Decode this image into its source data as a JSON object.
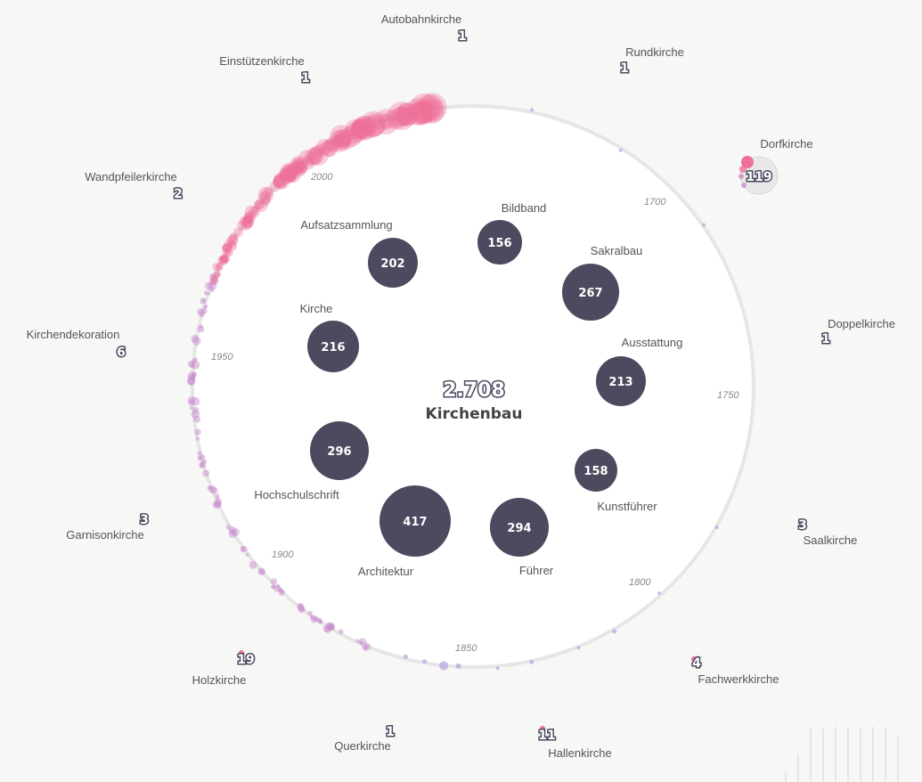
{
  "center": {
    "total": "2.708",
    "label": "Kirchenbau"
  },
  "inner_topics": [
    {
      "label": "Bildband",
      "value": "156"
    },
    {
      "label": "Aufsatzsammlung",
      "value": "202"
    },
    {
      "label": "Sakralbau",
      "value": "267"
    },
    {
      "label": "Kirche",
      "value": "216"
    },
    {
      "label": "Ausstattung",
      "value": "213"
    },
    {
      "label": "Hochschulschrift",
      "value": "296"
    },
    {
      "label": "Kunstführer",
      "value": "158"
    },
    {
      "label": "Architektur",
      "value": "417"
    },
    {
      "label": "Führer",
      "value": "294"
    }
  ],
  "outer_categories": [
    {
      "label": "Autobahnkirche",
      "value": "1"
    },
    {
      "label": "Einstützenkirche",
      "value": "1"
    },
    {
      "label": "Rundkirche",
      "value": "1"
    },
    {
      "label": "Dorfkirche",
      "value": "119"
    },
    {
      "label": "Wandpfeilerkirche",
      "value": "2"
    },
    {
      "label": "Doppelkirche",
      "value": "1"
    },
    {
      "label": "Kirchendekoration",
      "value": "6"
    },
    {
      "label": "Garnisonkirche",
      "value": "3"
    },
    {
      "label": "Saalkirche",
      "value": "3"
    },
    {
      "label": "Holzkirche",
      "value": "19"
    },
    {
      "label": "Fachwerkkirche",
      "value": "4"
    },
    {
      "label": "Querkirche",
      "value": "1"
    },
    {
      "label": "Hallenkirche",
      "value": "11"
    }
  ],
  "timeline_years": [
    "1700",
    "1750",
    "1800",
    "1850",
    "1900",
    "1950",
    "2000"
  ],
  "colors": {
    "bubble": "#4b4a5e",
    "accent_pink": "#ee6f98",
    "accent_purple": "#c9a0d8",
    "ring": "#e6e6e6"
  }
}
